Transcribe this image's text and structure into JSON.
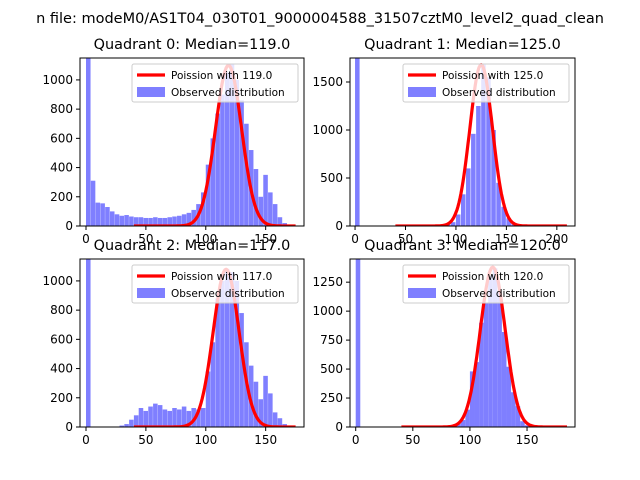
{
  "suptitle": "n file: modeM0/AS1T04_030T01_9000004588_31507cztM0_level2_quad_clean",
  "colors": {
    "histogram": "#7f7fff",
    "fit_line": "#ff0000",
    "axis": "#000000"
  },
  "chart_data": [
    {
      "type": "bar",
      "title": "Quadrant 0: Median=119.0",
      "xlim": [
        -5,
        182
      ],
      "ylim": [
        0,
        1150
      ],
      "xticks": [
        0,
        50,
        100,
        150
      ],
      "yticks": [
        0,
        200,
        400,
        600,
        800,
        1000
      ],
      "legend_position": "top-right",
      "legend": [
        "Poission with 119.0",
        "Observed distribution"
      ],
      "hist_bin_width": 3.8,
      "hist_x": [
        0,
        4,
        8,
        12,
        16,
        20,
        24,
        28,
        32,
        36,
        40,
        44,
        48,
        52,
        56,
        60,
        64,
        68,
        72,
        76,
        80,
        84,
        88,
        92,
        96,
        100,
        104,
        108,
        112,
        116,
        120,
        124,
        128,
        132,
        136,
        140,
        144,
        148,
        152,
        156,
        160,
        164,
        168,
        172
      ],
      "hist_counts": [
        1150,
        310,
        160,
        155,
        130,
        100,
        80,
        70,
        75,
        65,
        60,
        60,
        55,
        55,
        60,
        55,
        55,
        60,
        65,
        70,
        80,
        90,
        110,
        150,
        230,
        420,
        600,
        770,
        900,
        1050,
        1110,
        1000,
        860,
        700,
        520,
        390,
        200,
        350,
        230,
        150,
        60,
        20,
        5,
        0
      ],
      "fit_label": "Poission with 119.0",
      "fit_mean": 119.0,
      "fit_sigma": 10.9,
      "fit_peak": 1100,
      "fit_range": [
        40,
        175
      ]
    },
    {
      "type": "bar",
      "title": "Quadrant 1: Median=125.0",
      "xlim": [
        -5,
        218
      ],
      "ylim": [
        0,
        1750
      ],
      "xticks": [
        0,
        50,
        100,
        150,
        200
      ],
      "yticks": [
        0,
        500,
        1000,
        1500
      ],
      "legend_position": "top-right",
      "legend": [
        "Poission with 125.0",
        "Observed distribution"
      ],
      "hist_bin_width": 4.5,
      "hist_x": [
        0,
        5,
        10,
        15,
        20,
        25,
        30,
        35,
        40,
        45,
        50,
        55,
        60,
        65,
        70,
        75,
        80,
        85,
        90,
        95,
        100,
        105,
        110,
        115,
        120,
        125,
        130,
        135,
        140,
        145,
        150,
        155,
        160,
        165,
        170,
        175,
        180,
        185,
        190,
        195,
        200,
        205,
        210
      ],
      "hist_counts": [
        1750,
        0,
        0,
        0,
        0,
        0,
        0,
        0,
        0,
        0,
        0,
        0,
        0,
        0,
        0,
        0,
        5,
        10,
        20,
        40,
        120,
        330,
        600,
        960,
        1250,
        1680,
        1550,
        1000,
        450,
        200,
        80,
        30,
        10,
        3,
        0,
        0,
        0,
        0,
        0,
        0,
        0,
        0,
        0
      ],
      "fit_label": "Poission with 125.0",
      "fit_mean": 125.0,
      "fit_sigma": 11.2,
      "fit_peak": 1680,
      "fit_range": [
        40,
        210
      ]
    },
    {
      "type": "bar",
      "title": "Quadrant 2: Median=117.0",
      "xlim": [
        -5,
        182
      ],
      "ylim": [
        0,
        1150
      ],
      "xticks": [
        0,
        50,
        100,
        150
      ],
      "yticks": [
        0,
        200,
        400,
        600,
        800,
        1000
      ],
      "legend_position": "top-right",
      "legend": [
        "Poission with 117.0",
        "Observed distribution"
      ],
      "hist_bin_width": 3.8,
      "hist_x": [
        0,
        4,
        8,
        12,
        16,
        20,
        24,
        28,
        32,
        36,
        40,
        44,
        48,
        52,
        56,
        60,
        64,
        68,
        72,
        76,
        80,
        84,
        88,
        92,
        96,
        100,
        104,
        108,
        112,
        116,
        120,
        124,
        128,
        132,
        136,
        140,
        144,
        148,
        152,
        156,
        160,
        164,
        168,
        172
      ],
      "hist_counts": [
        1150,
        0,
        0,
        0,
        0,
        0,
        0,
        10,
        20,
        50,
        80,
        130,
        110,
        140,
        160,
        150,
        120,
        110,
        130,
        120,
        140,
        110,
        130,
        120,
        130,
        380,
        580,
        880,
        1000,
        1080,
        1060,
        1000,
        780,
        580,
        420,
        310,
        190,
        350,
        230,
        100,
        60,
        20,
        5,
        0
      ],
      "fit_label": "Poission with 117.0",
      "fit_mean": 117.0,
      "fit_sigma": 10.8,
      "fit_peak": 1080,
      "fit_range": [
        40,
        175
      ]
    },
    {
      "type": "bar",
      "title": "Quadrant 3: Median=120.0",
      "xlim": [
        -5,
        192
      ],
      "ylim": [
        0,
        1450
      ],
      "xticks": [
        0,
        50,
        100,
        150
      ],
      "yticks": [
        0,
        250,
        500,
        750,
        1000,
        1250
      ],
      "legend_position": "top-right",
      "legend": [
        "Poission with 120.0",
        "Observed distribution"
      ],
      "hist_bin_width": 4,
      "hist_x": [
        0,
        4,
        8,
        12,
        16,
        20,
        24,
        28,
        32,
        36,
        40,
        44,
        48,
        52,
        56,
        60,
        64,
        68,
        72,
        76,
        80,
        84,
        88,
        92,
        96,
        100,
        104,
        108,
        112,
        116,
        120,
        124,
        128,
        132,
        136,
        140,
        144,
        148,
        152,
        156,
        160,
        164,
        168,
        172,
        176,
        180,
        184
      ],
      "hist_counts": [
        1450,
        0,
        0,
        0,
        0,
        0,
        0,
        0,
        0,
        0,
        0,
        0,
        0,
        0,
        0,
        0,
        0,
        0,
        0,
        0,
        5,
        10,
        30,
        60,
        150,
        480,
        560,
        900,
        1070,
        1310,
        1370,
        1170,
        820,
        520,
        300,
        180,
        50,
        15,
        5,
        0,
        0,
        0,
        0,
        0,
        0,
        0,
        0
      ],
      "fit_label": "Poission with 120.0",
      "fit_mean": 120.0,
      "fit_sigma": 10.95,
      "fit_peak": 1380,
      "fit_range": [
        40,
        185
      ]
    }
  ]
}
